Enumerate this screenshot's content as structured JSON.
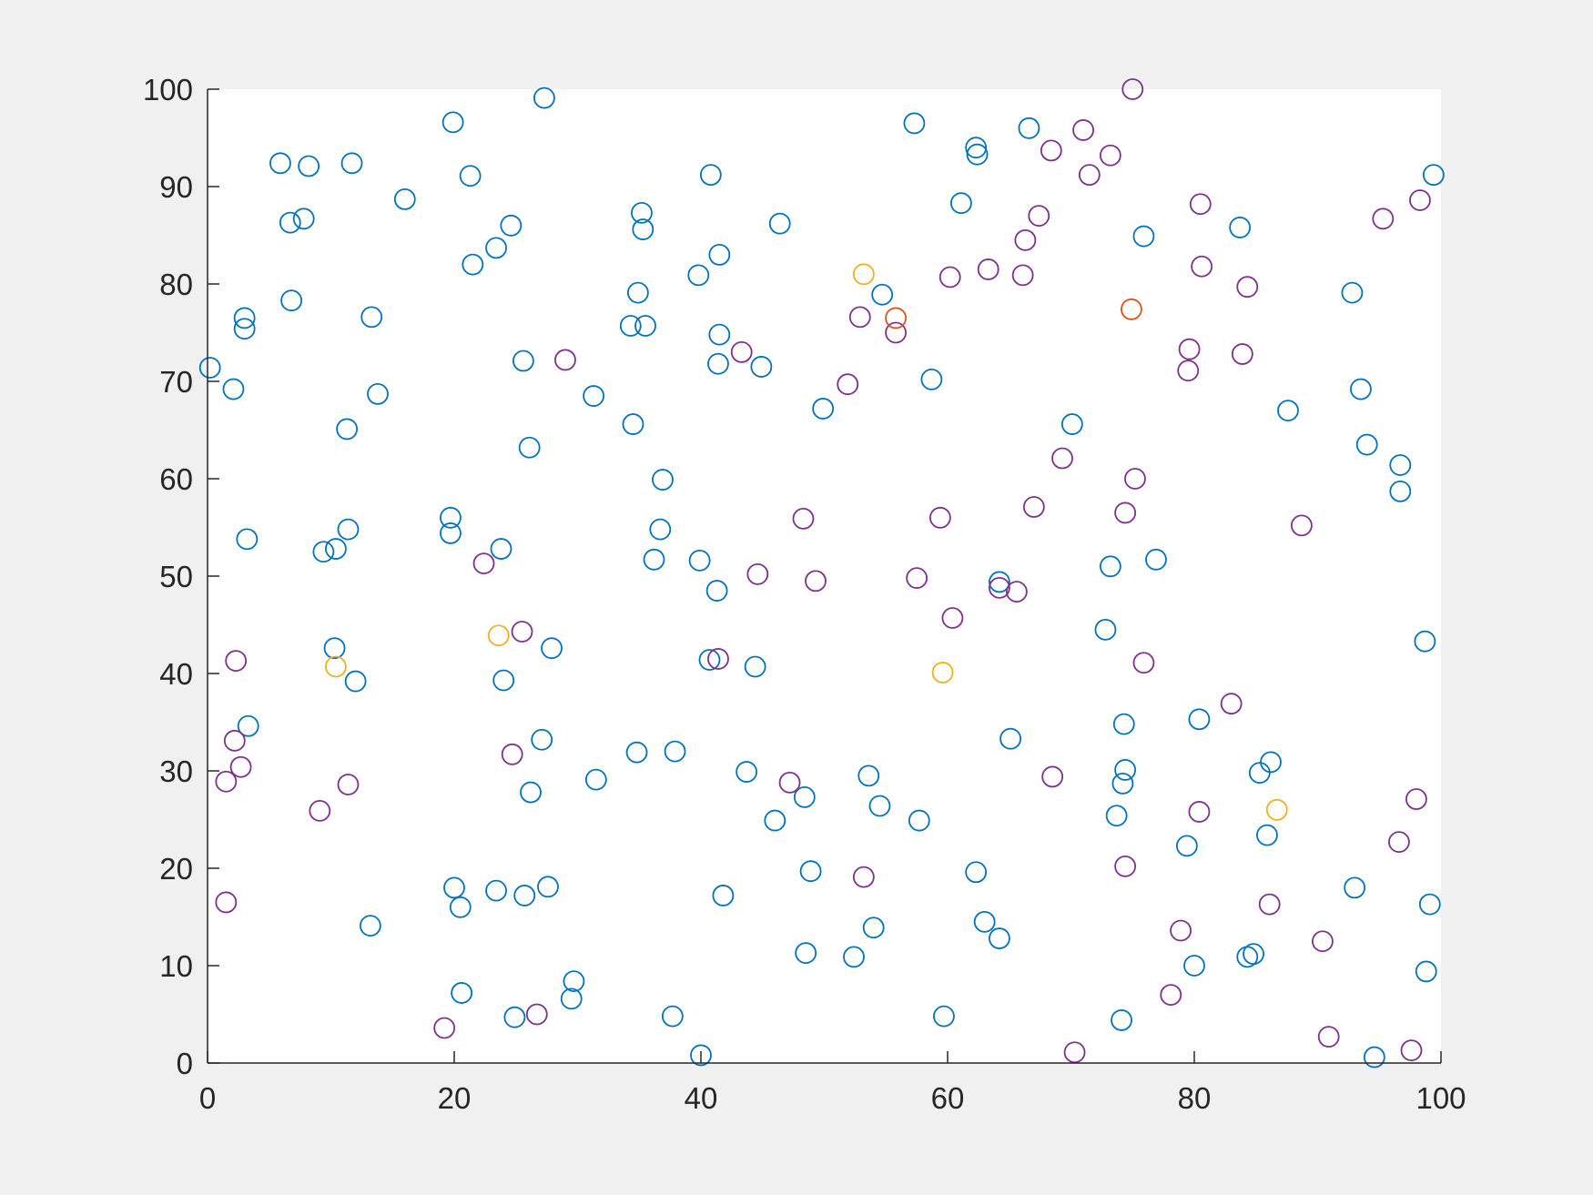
{
  "chart_data": {
    "type": "scatter",
    "xlim": [
      0,
      100
    ],
    "ylim": [
      0,
      100
    ],
    "xticks": [
      0,
      20,
      40,
      60,
      80,
      100
    ],
    "yticks": [
      0,
      10,
      20,
      30,
      40,
      50,
      60,
      70,
      80,
      90,
      100
    ],
    "marker": "open-circle",
    "series": [
      {
        "color": "#0072BD",
        "x": [
          0.2,
          2.1,
          3.0,
          3.0,
          5.9,
          8.2,
          6.7,
          7.8,
          6.8,
          11.7,
          16.0,
          13.3,
          13.8,
          11.3,
          3.2,
          9.4,
          10.4,
          11.4,
          10.3,
          12.0,
          3.3,
          13.2,
          19.9,
          21.3,
          21.5,
          23.4,
          24.6,
          27.3,
          25.6,
          26.1,
          19.7,
          19.7,
          23.8,
          24.0,
          27.9,
          27.1,
          26.2,
          20.0,
          20.5,
          23.4,
          25.7,
          27.6,
          20.6,
          24.9,
          29.7,
          29.5,
          31.3,
          31.5,
          34.9,
          35.2,
          35.3,
          34.3,
          35.5,
          34.5,
          36.9,
          36.7,
          36.2,
          34.8,
          37.9,
          37.7,
          40.0,
          40.8,
          41.5,
          39.8,
          41.5,
          41.4,
          44.9,
          46.4,
          39.9,
          41.3,
          40.7,
          44.4,
          43.7,
          46.0,
          41.8,
          48.4,
          48.9,
          48.5,
          49.9,
          54.7,
          57.3,
          58.7,
          53.6,
          54.5,
          57.7,
          52.4,
          54.0,
          59.7,
          61.1,
          62.3,
          62.4,
          66.6,
          70.1,
          64.2,
          65.1,
          62.3,
          63.0,
          64.2,
          73.2,
          76.9,
          75.9,
          72.8,
          74.3,
          74.4,
          74.2,
          73.7,
          74.1,
          80.0,
          79.4,
          80.4,
          83.7,
          87.6,
          92.8,
          93.5,
          94.0,
          96.7,
          96.7,
          99.4,
          98.7,
          86.2,
          85.3,
          85.9,
          93.0,
          99.1,
          98.8,
          84.3,
          84.8,
          94.6
        ],
        "values": [
          71.4,
          69.2,
          76.5,
          75.4,
          92.4,
          92.1,
          86.3,
          86.7,
          78.3,
          92.4,
          88.7,
          76.6,
          68.7,
          65.1,
          53.8,
          52.5,
          52.8,
          54.8,
          42.6,
          39.2,
          34.6,
          14.1,
          96.6,
          91.1,
          82.0,
          83.7,
          86.0,
          99.1,
          72.1,
          63.2,
          56.0,
          54.4,
          52.8,
          39.3,
          42.6,
          33.2,
          27.8,
          18.0,
          16.0,
          17.7,
          17.2,
          18.1,
          7.2,
          4.7,
          8.4,
          6.6,
          68.5,
          29.1,
          79.1,
          87.3,
          85.6,
          75.7,
          75.7,
          65.6,
          59.9,
          54.8,
          51.7,
          31.9,
          32.0,
          4.8,
          0.8,
          91.2,
          83.0,
          80.9,
          74.8,
          71.8,
          71.5,
          86.2,
          51.6,
          48.5,
          41.4,
          40.7,
          29.9,
          24.9,
          17.2,
          27.3,
          19.7,
          11.3,
          67.2,
          78.9,
          96.5,
          70.2,
          29.5,
          26.4,
          24.9,
          10.9,
          13.9,
          4.8,
          88.3,
          94.0,
          93.3,
          96.0,
          65.6,
          49.4,
          33.3,
          19.6,
          14.5,
          12.8,
          51.0,
          51.7,
          84.9,
          44.5,
          34.8,
          30.1,
          28.7,
          25.4,
          4.4,
          10.0,
          22.3,
          35.3,
          85.8,
          67.0,
          79.1,
          69.2,
          63.5,
          61.4,
          58.7,
          91.2,
          43.3,
          30.9,
          29.8,
          23.4,
          18.0,
          16.3,
          9.4,
          10.9,
          11.2,
          0.6
        ]
      },
      {
        "color": "#7E2F8E",
        "x": [
          1.5,
          1.5,
          2.2,
          2.7,
          2.3,
          9.1,
          11.4,
          22.4,
          25.5,
          24.7,
          26.7,
          19.2,
          29.0,
          41.4,
          43.3,
          44.6,
          47.2,
          48.3,
          49.3,
          51.9,
          52.9,
          55.8,
          53.2,
          59.4,
          57.5,
          60.4,
          60.2,
          63.3,
          66.1,
          66.3,
          67.4,
          68.4,
          71.0,
          71.5,
          73.2,
          75.0,
          69.3,
          67.0,
          65.6,
          64.2,
          68.5,
          70.3,
          75.2,
          74.4,
          75.9,
          74.4,
          79.6,
          79.5,
          80.5,
          80.6,
          84.3,
          83.9,
          83.0,
          80.4,
          78.9,
          78.1,
          86.1,
          88.7,
          90.4,
          90.9,
          95.3,
          98.3,
          98.0,
          96.6,
          97.6
        ],
        "values": [
          16.5,
          28.9,
          33.1,
          30.4,
          41.3,
          25.9,
          28.6,
          51.3,
          44.3,
          31.7,
          5.0,
          3.6,
          72.2,
          41.5,
          73.0,
          50.2,
          28.8,
          55.9,
          49.5,
          69.7,
          76.6,
          75.0,
          19.1,
          56.0,
          49.8,
          45.7,
          80.7,
          81.5,
          80.9,
          84.5,
          87.0,
          93.7,
          95.8,
          91.2,
          93.2,
          100.0,
          62.1,
          57.1,
          48.4,
          48.8,
          29.4,
          1.1,
          60.0,
          56.5,
          41.1,
          20.2,
          73.3,
          71.1,
          88.2,
          81.8,
          79.7,
          72.8,
          36.9,
          25.8,
          13.6,
          7.0,
          16.3,
          55.2,
          12.5,
          2.7,
          86.7,
          88.6,
          27.1,
          22.7,
          1.3
        ]
      },
      {
        "color": "#EDB120",
        "x": [
          53.2,
          23.6,
          10.4,
          59.6,
          86.7
        ],
        "values": [
          81.0,
          43.9,
          40.7,
          40.1,
          26.0
        ]
      },
      {
        "color": "#D95319",
        "x": [
          55.8,
          74.9
        ],
        "values": [
          76.5,
          77.4
        ]
      }
    ]
  }
}
